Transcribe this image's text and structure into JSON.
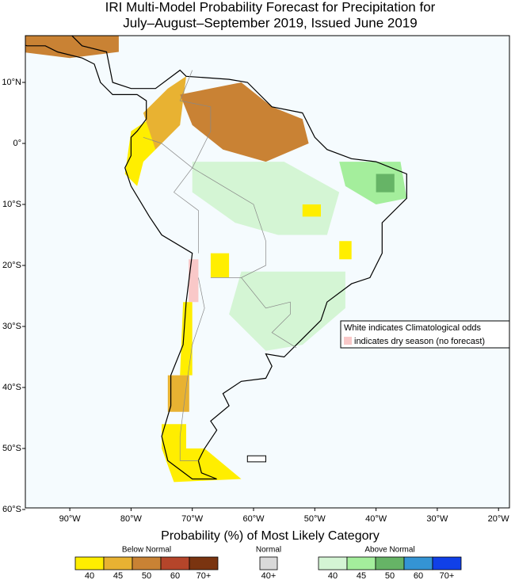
{
  "header": {
    "title_line1": "IRI Multi-Model Probability Forecast for Precipitation for",
    "title_line2": "July–August–September 2019, Issued June 2019"
  },
  "map": {
    "lat_labels": [
      "10°N",
      "0°",
      "10°S",
      "20°S",
      "30°S",
      "40°S",
      "50°S",
      "60°S"
    ],
    "lon_labels": [
      "90°W",
      "80°W",
      "70°W",
      "60°W",
      "50°W",
      "40°W",
      "30°W",
      "20°W"
    ],
    "note_line1": "White indicates Climatological odds",
    "note_line2": "indicates dry season (no forecast)"
  },
  "legend": {
    "title": "Probability (%) of Most Likely Category",
    "groups": [
      {
        "name": "Below Normal",
        "items": [
          {
            "label": "40",
            "color": "#ffee00"
          },
          {
            "label": "45",
            "color": "#e8b232"
          },
          {
            "label": "50",
            "color": "#c98234"
          },
          {
            "label": "60",
            "color": "#b5452a"
          },
          {
            "label": "70+",
            "color": "#7a3410"
          }
        ]
      },
      {
        "name": "Normal",
        "items": [
          {
            "label": "40+",
            "color": "#d9d9d9"
          }
        ]
      },
      {
        "name": "Above Normal",
        "items": [
          {
            "label": "40",
            "color": "#d4f5d4"
          },
          {
            "label": "45",
            "color": "#a4ee9c"
          },
          {
            "label": "50",
            "color": "#66b466"
          },
          {
            "label": "60",
            "color": "#3494d4"
          },
          {
            "label": "70+",
            "color": "#1040e8"
          }
        ]
      }
    ]
  }
}
